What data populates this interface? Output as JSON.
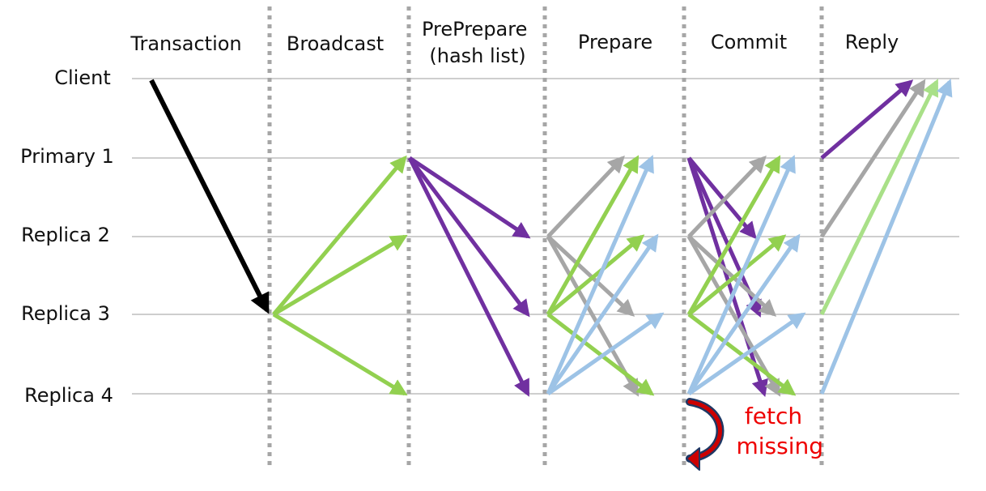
{
  "phases": [
    {
      "id": "transaction",
      "lines": [
        "Transaction"
      ]
    },
    {
      "id": "broadcast",
      "lines": [
        "Broadcast"
      ]
    },
    {
      "id": "preprepare",
      "lines": [
        "PrePrepare",
        "(hash list)"
      ]
    },
    {
      "id": "prepare",
      "lines": [
        "Prepare"
      ]
    },
    {
      "id": "commit",
      "lines": [
        "Commit"
      ]
    },
    {
      "id": "reply",
      "lines": [
        "Reply"
      ]
    }
  ],
  "nodes": [
    {
      "id": "client",
      "label": "Client"
    },
    {
      "id": "primary-1",
      "label": "Primary 1"
    },
    {
      "id": "replica-2",
      "label": "Replica 2"
    },
    {
      "id": "replica-3",
      "label": "Replica 3"
    },
    {
      "id": "replica-4",
      "label": "Replica 4"
    }
  ],
  "note": {
    "lines": [
      "fetch",
      "missing"
    ],
    "color": "#ee0000"
  },
  "colors": {
    "client": "#000000",
    "primary-1": "#7030a0",
    "replica-2": "#a6a6a6",
    "replica-3": "#92d050",
    "replica-3-reply": "#a9e088",
    "replica-4": "#9dc3e6",
    "fetch-arrow": "#cc0000",
    "fetch-outline": "#1f3864"
  },
  "messages": [
    {
      "phase": "transaction",
      "from": "client",
      "to": "replica-3",
      "color": "client"
    },
    {
      "phase": "broadcast",
      "from": "replica-3",
      "to": "primary-1",
      "color": "replica-3"
    },
    {
      "phase": "broadcast",
      "from": "replica-3",
      "to": "replica-2",
      "color": "replica-3"
    },
    {
      "phase": "broadcast",
      "from": "replica-3",
      "to": "replica-4",
      "color": "replica-3"
    },
    {
      "phase": "preprepare",
      "from": "primary-1",
      "to": "replica-2",
      "color": "primary-1"
    },
    {
      "phase": "preprepare",
      "from": "primary-1",
      "to": "replica-3",
      "color": "primary-1"
    },
    {
      "phase": "preprepare",
      "from": "primary-1",
      "to": "replica-4",
      "color": "primary-1"
    },
    {
      "phase": "prepare",
      "from": "replica-2",
      "to": "primary-1",
      "color": "replica-2"
    },
    {
      "phase": "prepare",
      "from": "replica-2",
      "to": "replica-3",
      "color": "replica-2"
    },
    {
      "phase": "prepare",
      "from": "replica-2",
      "to": "replica-4",
      "color": "replica-2"
    },
    {
      "phase": "prepare",
      "from": "replica-3",
      "to": "primary-1",
      "color": "replica-3"
    },
    {
      "phase": "prepare",
      "from": "replica-3",
      "to": "replica-2",
      "color": "replica-3"
    },
    {
      "phase": "prepare",
      "from": "replica-3",
      "to": "replica-4",
      "color": "replica-3"
    },
    {
      "phase": "prepare",
      "from": "replica-4",
      "to": "primary-1",
      "color": "replica-4"
    },
    {
      "phase": "prepare",
      "from": "replica-4",
      "to": "replica-2",
      "color": "replica-4"
    },
    {
      "phase": "prepare",
      "from": "replica-4",
      "to": "replica-3",
      "color": "replica-4"
    },
    {
      "phase": "commit",
      "from": "primary-1",
      "to": "replica-2",
      "color": "primary-1"
    },
    {
      "phase": "commit",
      "from": "primary-1",
      "to": "replica-3",
      "color": "primary-1"
    },
    {
      "phase": "commit",
      "from": "primary-1",
      "to": "replica-4",
      "color": "primary-1"
    },
    {
      "phase": "commit",
      "from": "replica-2",
      "to": "primary-1",
      "color": "replica-2"
    },
    {
      "phase": "commit",
      "from": "replica-2",
      "to": "replica-3",
      "color": "replica-2"
    },
    {
      "phase": "commit",
      "from": "replica-2",
      "to": "replica-4",
      "color": "replica-2"
    },
    {
      "phase": "commit",
      "from": "replica-3",
      "to": "primary-1",
      "color": "replica-3"
    },
    {
      "phase": "commit",
      "from": "replica-3",
      "to": "replica-2",
      "color": "replica-3"
    },
    {
      "phase": "commit",
      "from": "replica-3",
      "to": "replica-4",
      "color": "replica-3"
    },
    {
      "phase": "commit",
      "from": "replica-4",
      "to": "primary-1",
      "color": "replica-4"
    },
    {
      "phase": "commit",
      "from": "replica-4",
      "to": "replica-2",
      "color": "replica-4"
    },
    {
      "phase": "commit",
      "from": "replica-4",
      "to": "replica-3",
      "color": "replica-4"
    },
    {
      "phase": "reply",
      "from": "primary-1",
      "to": "client",
      "color": "primary-1"
    },
    {
      "phase": "reply",
      "from": "replica-2",
      "to": "client",
      "color": "replica-2"
    },
    {
      "phase": "reply",
      "from": "replica-3",
      "to": "client",
      "color": "replica-3-reply"
    },
    {
      "phase": "reply",
      "from": "replica-4",
      "to": "client",
      "color": "replica-4"
    }
  ]
}
